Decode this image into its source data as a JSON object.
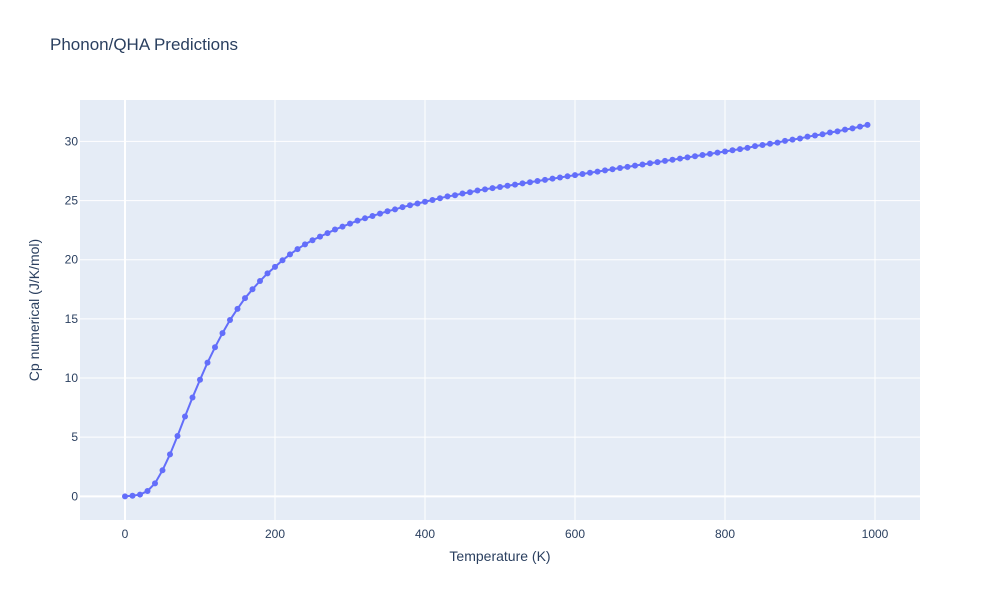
{
  "chart_data": {
    "type": "line",
    "title": "Phonon/QHA Predictions",
    "xlabel": "Temperature (K)",
    "ylabel": "Cp numerical (J/K/mol)",
    "xlim": [
      -60,
      1060
    ],
    "ylim": [
      -2,
      33.5
    ],
    "xticks": [
      0,
      200,
      400,
      600,
      800,
      1000
    ],
    "yticks": [
      0,
      5,
      10,
      15,
      20,
      25,
      30
    ],
    "grid": true,
    "colors": {
      "series": "#636efa",
      "plot_bg": "#e5ecf6",
      "grid": "#ffffff",
      "text": "#2a3f5f"
    },
    "series": [
      {
        "mode": "lines+markers",
        "x": [
          0,
          10,
          20,
          30,
          40,
          50,
          60,
          70,
          80,
          90,
          100,
          110,
          120,
          130,
          140,
          150,
          160,
          170,
          180,
          190,
          200,
          210,
          220,
          230,
          240,
          250,
          260,
          270,
          280,
          290,
          300,
          310,
          320,
          330,
          340,
          350,
          360,
          370,
          380,
          390,
          400,
          410,
          420,
          430,
          440,
          450,
          460,
          470,
          480,
          490,
          500,
          510,
          520,
          530,
          540,
          550,
          560,
          570,
          580,
          590,
          600,
          610,
          620,
          630,
          640,
          650,
          660,
          670,
          680,
          690,
          700,
          710,
          720,
          730,
          740,
          750,
          760,
          770,
          780,
          790,
          800,
          810,
          820,
          830,
          840,
          850,
          860,
          870,
          880,
          890,
          900,
          910,
          920,
          930,
          940,
          950,
          960,
          970,
          980,
          990
        ],
        "y": [
          0,
          0.05,
          0.15,
          0.45,
          1.1,
          2.2,
          3.55,
          5.1,
          6.75,
          8.35,
          9.85,
          11.3,
          12.6,
          13.8,
          14.9,
          15.85,
          16.75,
          17.5,
          18.2,
          18.85,
          19.4,
          19.95,
          20.45,
          20.9,
          21.3,
          21.65,
          21.95,
          22.25,
          22.55,
          22.8,
          23.05,
          23.3,
          23.5,
          23.7,
          23.9,
          24.1,
          24.25,
          24.45,
          24.6,
          24.75,
          24.9,
          25.05,
          25.2,
          25.35,
          25.45,
          25.6,
          25.7,
          25.85,
          25.95,
          26.05,
          26.15,
          26.25,
          26.35,
          26.45,
          26.55,
          26.65,
          26.75,
          26.85,
          26.95,
          27.05,
          27.15,
          27.25,
          27.35,
          27.45,
          27.55,
          27.65,
          27.75,
          27.85,
          27.95,
          28.05,
          28.15,
          28.25,
          28.35,
          28.45,
          28.55,
          28.65,
          28.75,
          28.85,
          28.95,
          29.05,
          29.15,
          29.25,
          29.35,
          29.45,
          29.6,
          29.7,
          29.8,
          29.9,
          30.05,
          30.15,
          30.25,
          30.4,
          30.5,
          30.6,
          30.75,
          30.85,
          31.0,
          31.1,
          31.25,
          31.4
        ]
      }
    ]
  }
}
